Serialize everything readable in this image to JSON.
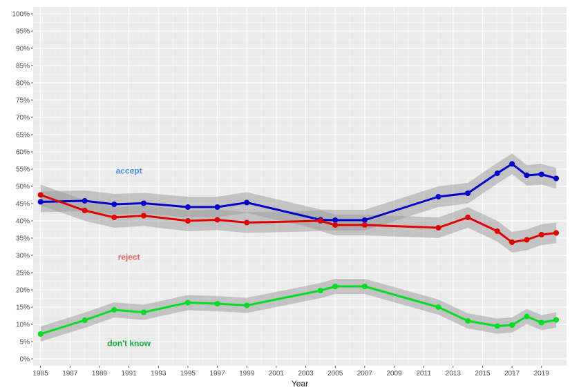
{
  "chart_data": {
    "type": "line",
    "title": "",
    "xlabel": "Year",
    "ylabel": "",
    "xlim": [
      1984.5,
      2020.7
    ],
    "ylim": [
      -0.02,
      1.02
    ],
    "grid": true,
    "legend": "none",
    "x_ticks": [
      1985,
      1987,
      1989,
      1991,
      1993,
      1995,
      1997,
      1999,
      2001,
      2003,
      2005,
      2007,
      2009,
      2011,
      2013,
      2015,
      2017,
      2019
    ],
    "x_tick_labels": [
      "1985",
      "1987",
      "1989",
      "1991",
      "1993",
      "1995",
      "1997",
      "1999",
      "2001",
      "2003",
      "2005",
      "2007",
      "2009",
      "2011",
      "2013",
      "2015",
      "2017",
      "2019"
    ],
    "y_ticks": [
      0,
      0.05,
      0.1,
      0.15,
      0.2,
      0.25,
      0.3,
      0.35,
      0.4,
      0.45,
      0.5,
      0.55,
      0.6,
      0.65,
      0.7,
      0.75,
      0.8,
      0.85,
      0.9,
      0.95,
      1.0
    ],
    "y_tick_labels": [
      "0%",
      "5%",
      "10%",
      "15%",
      "20%",
      "25%",
      "30%",
      "35%",
      "40%",
      "45%",
      "50%",
      "55%",
      "60%",
      "65%",
      "70%",
      "75%",
      "80%",
      "85%",
      "90%",
      "95%",
      "100%"
    ],
    "series": [
      {
        "name": "accept",
        "label": "accept",
        "color": "#0000cc",
        "label_color": "#4f8fe6",
        "label_pos": [
          1991,
          0.545
        ],
        "x": [
          1985,
          1988,
          1990,
          1992,
          1995,
          1997,
          1999,
          2004,
          2005,
          2007,
          2012,
          2014,
          2016,
          2017,
          2018,
          2019,
          2020
        ],
        "values": [
          0.455,
          0.458,
          0.448,
          0.451,
          0.44,
          0.44,
          0.453,
          0.403,
          0.402,
          0.402,
          0.47,
          0.48,
          0.538,
          0.565,
          0.532,
          0.535,
          0.523
        ],
        "band_width": 0.03
      },
      {
        "name": "reject",
        "label": "reject",
        "color": "#e00000",
        "label_color": "#f06060",
        "label_pos": [
          1991,
          0.295
        ],
        "x": [
          1985,
          1988,
          1990,
          1992,
          1995,
          1997,
          1999,
          2004,
          2005,
          2007,
          2012,
          2014,
          2016,
          2017,
          2018,
          2019,
          2020
        ],
        "values": [
          0.475,
          0.43,
          0.41,
          0.415,
          0.4,
          0.403,
          0.395,
          0.4,
          0.388,
          0.388,
          0.38,
          0.41,
          0.37,
          0.338,
          0.345,
          0.36,
          0.365
        ],
        "band_width": 0.03
      },
      {
        "name": "don't know",
        "label": "don't know",
        "color": "#00dd22",
        "label_color": "#10b040",
        "label_pos": [
          1991,
          0.045
        ],
        "x": [
          1985,
          1988,
          1990,
          1992,
          1995,
          1997,
          1999,
          2004,
          2005,
          2007,
          2012,
          2014,
          2016,
          2017,
          2018,
          2019,
          2020
        ],
        "values": [
          0.072,
          0.112,
          0.142,
          0.135,
          0.163,
          0.16,
          0.155,
          0.198,
          0.21,
          0.21,
          0.15,
          0.11,
          0.095,
          0.098,
          0.123,
          0.105,
          0.113
        ],
        "band_width": 0.022
      }
    ]
  }
}
